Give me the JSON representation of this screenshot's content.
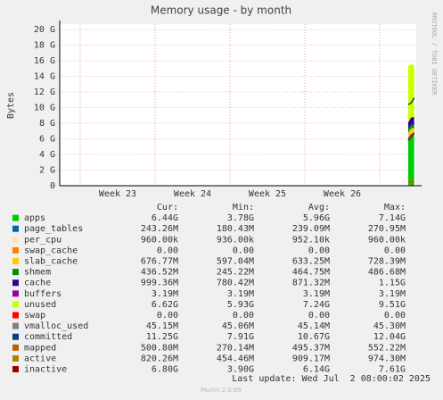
{
  "chart_data": {
    "type": "stacked-area",
    "title": "Memory usage - by month",
    "ylabel": "Bytes",
    "side_text": "RRDTOOL / TOBI OETIKER",
    "x": [
      27.38,
      27.42,
      27.46
    ],
    "xlim": [
      22.726,
      27.488
    ],
    "xticks": [
      {
        "value": 23.5,
        "label": "Week 23"
      },
      {
        "value": 24.5,
        "label": "Week 24"
      },
      {
        "value": 25.5,
        "label": "Week 25"
      },
      {
        "value": 26.5,
        "label": "Week 26"
      }
    ],
    "xgrid": [
      23,
      24,
      25,
      26,
      27
    ],
    "ylim": [
      0,
      20.7
    ],
    "yticks": [
      {
        "value": 0,
        "label": "0"
      },
      {
        "value": 2,
        "label": "2 G"
      },
      {
        "value": 4,
        "label": "4 G"
      },
      {
        "value": 6,
        "label": "6 G"
      },
      {
        "value": 8,
        "label": "8 G"
      },
      {
        "value": 10,
        "label": "10 G"
      },
      {
        "value": 12,
        "label": "12 G"
      },
      {
        "value": 14,
        "label": "14 G"
      },
      {
        "value": 16,
        "label": "16 G"
      },
      {
        "value": 18,
        "label": "18 G"
      },
      {
        "value": 20,
        "label": "20 G"
      }
    ],
    "grid": true,
    "series": [
      {
        "name": "apps",
        "color": "#00cc00",
        "kind": "area",
        "values": [
          5.9,
          6.44,
          6.44
        ]
      },
      {
        "name": "page_tables",
        "color": "#0066b3",
        "kind": "area",
        "values": [
          0.24,
          0.243,
          0.243
        ]
      },
      {
        "name": "per_cpu",
        "color": "#ffe5b4",
        "kind": "area",
        "values": [
          0.00096,
          0.00096,
          0.00096
        ]
      },
      {
        "name": "swap_cache",
        "color": "#ff8000",
        "kind": "area",
        "values": [
          0,
          0,
          0
        ]
      },
      {
        "name": "slab_cache",
        "color": "#ffcc00",
        "kind": "area",
        "values": [
          0.63,
          0.68,
          0.677
        ]
      },
      {
        "name": "shmem",
        "color": "#008f00",
        "kind": "area",
        "values": [
          0.46,
          0.44,
          0.437
        ]
      },
      {
        "name": "cache",
        "color": "#330099",
        "kind": "area",
        "values": [
          0.87,
          0.95,
          0.999
        ]
      },
      {
        "name": "buffers",
        "color": "#990099",
        "kind": "area",
        "values": [
          0.0032,
          0.0032,
          0.0032
        ]
      },
      {
        "name": "unused",
        "color": "#ccff00",
        "kind": "area",
        "values": [
          7.2,
          6.8,
          6.62
        ]
      },
      {
        "name": "swap",
        "color": "#ff0000",
        "kind": "area",
        "values": [
          0,
          0,
          0
        ]
      },
      {
        "name": "vmalloc_used",
        "color": "#808080",
        "kind": "line",
        "values": [
          0.045,
          0.045,
          0.045
        ]
      },
      {
        "name": "committed",
        "color": "#004080",
        "kind": "line",
        "values": [
          10.4,
          10.6,
          11.25
        ]
      },
      {
        "name": "mapped",
        "color": "#c06000",
        "kind": "line",
        "values": [
          0.45,
          0.5,
          0.5
        ]
      },
      {
        "name": "active",
        "color": "#b08000",
        "kind": "line",
        "values": [
          0.6,
          0.8,
          0.82
        ]
      },
      {
        "name": "inactive",
        "color": "#a00000",
        "kind": "line",
        "values": [
          5.8,
          6.2,
          6.8
        ]
      }
    ],
    "legend_table": {
      "columns": [
        "Cur:",
        "Min:",
        "Avg:",
        "Max:"
      ],
      "rows": [
        [
          "6.44G",
          "3.78G",
          "5.96G",
          "7.14G"
        ],
        [
          "243.26M",
          "180.43M",
          "239.09M",
          "270.95M"
        ],
        [
          "960.00k",
          "936.00k",
          "952.10k",
          "960.00k"
        ],
        [
          "0.00",
          "0.00",
          "0.00",
          "0.00"
        ],
        [
          "676.77M",
          "597.04M",
          "633.25M",
          "728.39M"
        ],
        [
          "436.52M",
          "245.22M",
          "464.75M",
          "486.68M"
        ],
        [
          "999.36M",
          "780.42M",
          "871.32M",
          "1.15G"
        ],
        [
          "3.19M",
          "3.19M",
          "3.19M",
          "3.19M"
        ],
        [
          "6.62G",
          "5.93G",
          "7.24G",
          "9.51G"
        ],
        [
          "0.00",
          "0.00",
          "0.00",
          "0.00"
        ],
        [
          "45.15M",
          "45.06M",
          "45.14M",
          "45.30M"
        ],
        [
          "11.25G",
          "7.91G",
          "10.67G",
          "12.04G"
        ],
        [
          "500.80M",
          "270.14M",
          "495.37M",
          "552.22M"
        ],
        [
          "820.26M",
          "454.46M",
          "909.17M",
          "974.30M"
        ],
        [
          "6.80G",
          "3.90G",
          "6.14G",
          "7.61G"
        ]
      ]
    },
    "last_update": "Last update: Wed Jul  2 08:00:02 2025",
    "version": "Munin 2.0.69"
  }
}
